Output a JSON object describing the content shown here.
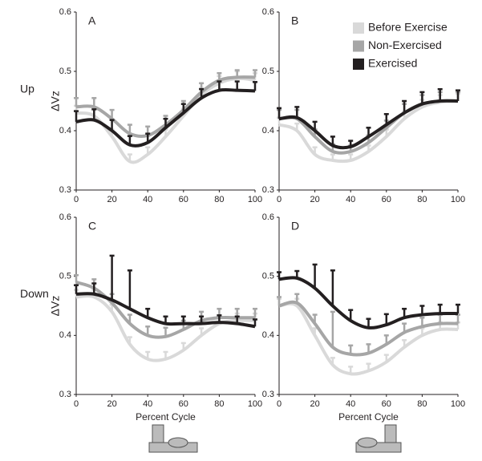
{
  "chart_data": [
    {
      "type": "line",
      "label": "A",
      "row_label": "Up",
      "ylabel": "ΔVz",
      "x": [
        0,
        10,
        20,
        30,
        40,
        50,
        60,
        70,
        80,
        90,
        100
      ],
      "xlim": [
        0,
        100
      ],
      "xticks": [
        0,
        20,
        40,
        60,
        80,
        100
      ],
      "ylim": [
        0.3,
        0.6
      ],
      "yticks": [
        0.3,
        0.4,
        0.5,
        0.6
      ],
      "series": [
        {
          "color": "#d9d9d9",
          "values": [
            0.43,
            0.425,
            0.39,
            0.348,
            0.36,
            0.39,
            0.425,
            0.46,
            0.48,
            0.488,
            0.485
          ],
          "errors": [
            0.012,
            0.012,
            0.012,
            0.012,
            0.012,
            0.012,
            0.012,
            0.012,
            0.012,
            0.012,
            0.012
          ]
        },
        {
          "color": "#a6a6a6",
          "values": [
            0.44,
            0.44,
            0.42,
            0.395,
            0.392,
            0.41,
            0.435,
            0.465,
            0.485,
            0.49,
            0.49
          ],
          "errors": [
            0.015,
            0.015,
            0.015,
            0.015,
            0.015,
            0.015,
            0.015,
            0.015,
            0.012,
            0.012,
            0.012
          ]
        },
        {
          "color": "#231f20",
          "values": [
            0.415,
            0.418,
            0.4,
            0.376,
            0.38,
            0.405,
            0.43,
            0.455,
            0.468,
            0.468,
            0.467
          ],
          "errors": [
            0.018,
            0.018,
            0.018,
            0.015,
            0.015,
            0.015,
            0.015,
            0.015,
            0.015,
            0.015,
            0.015
          ]
        }
      ]
    },
    {
      "type": "line",
      "label": "B",
      "legend": "upper right",
      "x": [
        0,
        10,
        20,
        30,
        40,
        50,
        60,
        70,
        80,
        90,
        100
      ],
      "xlim": [
        0,
        100
      ],
      "xticks": [
        0,
        20,
        40,
        60,
        80,
        100
      ],
      "ylim": [
        0.3,
        0.6
      ],
      "yticks": [
        0.3,
        0.4,
        0.5,
        0.6
      ],
      "series": [
        {
          "name": "Before Exercise",
          "color": "#d9d9d9",
          "values": [
            0.41,
            0.4,
            0.36,
            0.35,
            0.35,
            0.365,
            0.39,
            0.42,
            0.44,
            0.448,
            0.45
          ],
          "errors": [
            0.012,
            0.012,
            0.012,
            0.01,
            0.01,
            0.01,
            0.012,
            0.012,
            0.012,
            0.012,
            0.012
          ]
        },
        {
          "name": "Non-Exercised",
          "color": "#a6a6a6",
          "values": [
            0.42,
            0.42,
            0.39,
            0.365,
            0.365,
            0.38,
            0.405,
            0.43,
            0.445,
            0.45,
            0.45
          ],
          "errors": [
            0.015,
            0.015,
            0.012,
            0.012,
            0.01,
            0.012,
            0.012,
            0.015,
            0.015,
            0.015,
            0.015
          ]
        },
        {
          "name": "Exercised",
          "color": "#231f20",
          "values": [
            0.42,
            0.422,
            0.4,
            0.375,
            0.373,
            0.39,
            0.41,
            0.43,
            0.445,
            0.45,
            0.45
          ],
          "errors": [
            0.018,
            0.018,
            0.015,
            0.015,
            0.01,
            0.015,
            0.018,
            0.02,
            0.02,
            0.02,
            0.018
          ]
        }
      ]
    },
    {
      "type": "line",
      "label": "C",
      "row_label": "Down",
      "ylabel": "ΔVz",
      "xlabel": "Percent Cycle",
      "x": [
        0,
        10,
        20,
        30,
        40,
        50,
        60,
        70,
        80,
        90,
        100
      ],
      "xlim": [
        0,
        100
      ],
      "xticks": [
        0,
        20,
        40,
        60,
        80,
        100
      ],
      "ylim": [
        0.3,
        0.6
      ],
      "yticks": [
        0.3,
        0.4,
        0.5,
        0.6
      ],
      "series": [
        {
          "color": "#d9d9d9",
          "values": [
            0.465,
            0.465,
            0.44,
            0.385,
            0.36,
            0.36,
            0.375,
            0.4,
            0.42,
            0.425,
            0.425
          ],
          "errors": [
            0.012,
            0.012,
            0.012,
            0.012,
            0.012,
            0.012,
            0.012,
            0.012,
            0.012,
            0.012,
            0.012
          ]
        },
        {
          "color": "#a6a6a6",
          "values": [
            0.49,
            0.48,
            0.455,
            0.42,
            0.4,
            0.398,
            0.41,
            0.425,
            0.43,
            0.43,
            0.43
          ],
          "errors": [
            0.012,
            0.015,
            0.015,
            0.015,
            0.015,
            0.015,
            0.015,
            0.015,
            0.015,
            0.015,
            0.015
          ]
        },
        {
          "color": "#231f20",
          "values": [
            0.47,
            0.47,
            0.46,
            0.445,
            0.43,
            0.42,
            0.42,
            0.42,
            0.422,
            0.42,
            0.415
          ],
          "errors": [
            0.015,
            0.018,
            0.075,
            0.065,
            0.015,
            0.012,
            0.012,
            0.012,
            0.012,
            0.012,
            0.012
          ]
        }
      ]
    },
    {
      "type": "line",
      "label": "D",
      "xlabel": "Percent Cycle",
      "x": [
        0,
        10,
        20,
        30,
        40,
        50,
        60,
        70,
        80,
        90,
        100
      ],
      "xlim": [
        0,
        100
      ],
      "xticks": [
        0,
        20,
        40,
        60,
        80,
        100
      ],
      "ylim": [
        0.3,
        0.6
      ],
      "yticks": [
        0.3,
        0.4,
        0.5,
        0.6
      ],
      "series": [
        {
          "color": "#d9d9d9",
          "values": [
            0.45,
            0.45,
            0.4,
            0.35,
            0.335,
            0.34,
            0.355,
            0.38,
            0.4,
            0.41,
            0.41
          ],
          "errors": [
            0.012,
            0.012,
            0.012,
            0.012,
            0.012,
            0.012,
            0.012,
            0.012,
            0.012,
            0.012,
            0.012
          ]
        },
        {
          "color": "#a6a6a6",
          "values": [
            0.45,
            0.455,
            0.42,
            0.38,
            0.368,
            0.37,
            0.385,
            0.405,
            0.415,
            0.42,
            0.42
          ],
          "errors": [
            0.015,
            0.015,
            0.015,
            0.06,
            0.015,
            0.015,
            0.015,
            0.015,
            0.015,
            0.015,
            0.015
          ]
        },
        {
          "color": "#231f20",
          "values": [
            0.495,
            0.497,
            0.48,
            0.45,
            0.425,
            0.413,
            0.418,
            0.43,
            0.435,
            0.437,
            0.437
          ],
          "errors": [
            0.012,
            0.012,
            0.04,
            0.06,
            0.018,
            0.015,
            0.018,
            0.015,
            0.015,
            0.015,
            0.015
          ]
        }
      ]
    }
  ]
}
